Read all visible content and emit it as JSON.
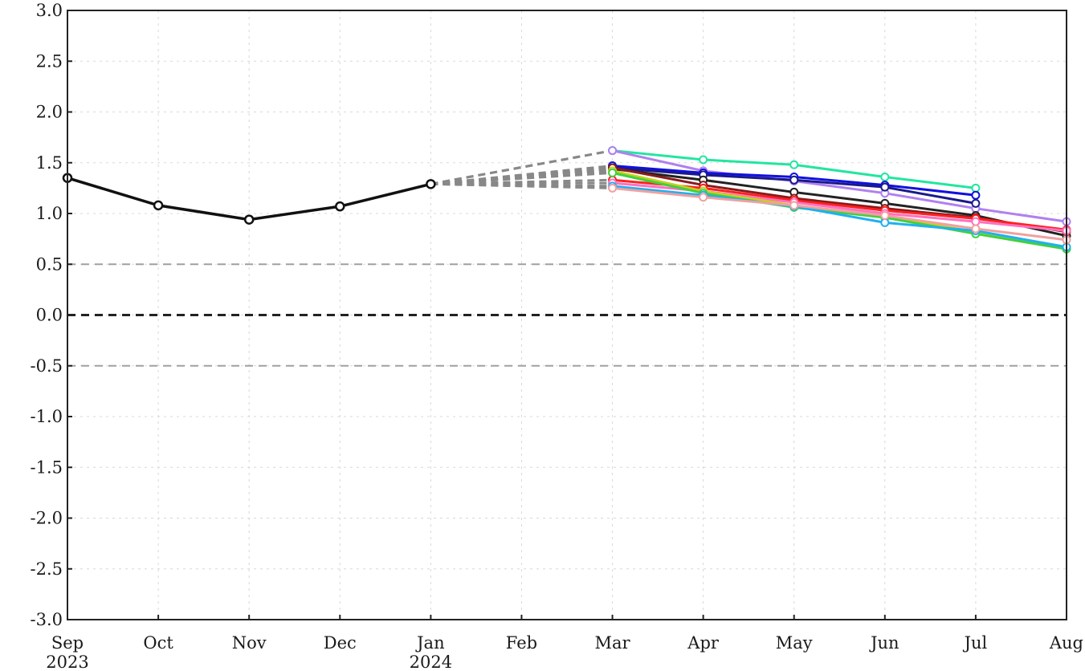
{
  "chart_data": {
    "type": "line",
    "title": "",
    "xlabel": "",
    "ylabel": "",
    "ylim": [
      -3.0,
      3.0
    ],
    "yticks": [
      "3.0",
      "2.5",
      "2.0",
      "1.5",
      "1.0",
      "0.5",
      "0.0",
      "-0.5",
      "-1.0",
      "-1.5",
      "-2.0",
      "-2.5",
      "-3.0"
    ],
    "xticks": [
      {
        "month": "Sep",
        "year": "2023"
      },
      {
        "month": "Oct",
        "year": ""
      },
      {
        "month": "Nov",
        "year": ""
      },
      {
        "month": "Dec",
        "year": ""
      },
      {
        "month": "Jan",
        "year": "2024"
      },
      {
        "month": "Feb",
        "year": ""
      },
      {
        "month": "Mar",
        "year": ""
      },
      {
        "month": "Apr",
        "year": ""
      },
      {
        "month": "May",
        "year": ""
      },
      {
        "month": "Jun",
        "year": ""
      },
      {
        "month": "Jul",
        "year": ""
      },
      {
        "month": "Aug",
        "year": ""
      }
    ],
    "grid": true,
    "reference_lines": [
      {
        "y": 0.5,
        "style": "dashed",
        "color": "#a0a0a0"
      },
      {
        "y": 0.0,
        "style": "dashed",
        "color": "#222222"
      },
      {
        "y": -0.5,
        "style": "dashed",
        "color": "#a0a0a0"
      }
    ],
    "observed": {
      "color": "#111111",
      "x": [
        "Sep 2023",
        "Oct",
        "Nov",
        "Dec",
        "Jan 2024"
      ],
      "values": [
        1.35,
        1.08,
        0.94,
        1.07,
        1.29
      ]
    },
    "connector": {
      "color": "#888888",
      "style": "dashed",
      "from": "Jan 2024",
      "to": "Mar"
    },
    "forecast_x": [
      "Mar",
      "Apr",
      "May",
      "Jun",
      "Jul",
      "Aug"
    ],
    "series": [
      {
        "color": "#22e6a0",
        "values": [
          1.62,
          1.53,
          1.48,
          1.36,
          1.25,
          null
        ]
      },
      {
        "color": "#b080f0",
        "values": [
          1.62,
          1.42,
          1.32,
          1.2,
          1.05,
          0.92
        ]
      },
      {
        "color": "#1010e0",
        "values": [
          1.47,
          1.4,
          1.36,
          1.28,
          1.18,
          null
        ]
      },
      {
        "color": "#1a1a8a",
        "values": [
          1.45,
          1.38,
          1.33,
          1.26,
          1.1,
          null
        ]
      },
      {
        "color": "#222222",
        "values": [
          1.44,
          1.33,
          1.21,
          1.1,
          0.98,
          0.78
        ]
      },
      {
        "color": "#8b1a1a",
        "values": [
          1.45,
          1.28,
          1.15,
          1.05,
          0.96,
          0.82
        ]
      },
      {
        "color": "#ff2020",
        "values": [
          1.33,
          1.25,
          1.13,
          1.03,
          0.95,
          0.84
        ]
      },
      {
        "color": "#ff70c0",
        "values": [
          1.3,
          1.22,
          1.11,
          1.0,
          0.92,
          0.83
        ]
      },
      {
        "color": "#c8d020",
        "values": [
          1.42,
          1.22,
          1.08,
          0.97,
          0.82,
          0.66
        ]
      },
      {
        "color": "#40d040",
        "values": [
          1.4,
          1.2,
          1.06,
          0.96,
          0.8,
          0.65
        ]
      },
      {
        "color": "#20b0f0",
        "values": [
          1.27,
          1.18,
          1.07,
          0.91,
          0.83,
          0.67
        ]
      },
      {
        "color": "#f0a0a0",
        "values": [
          1.25,
          1.16,
          1.08,
          0.98,
          0.85,
          0.74
        ]
      }
    ]
  }
}
